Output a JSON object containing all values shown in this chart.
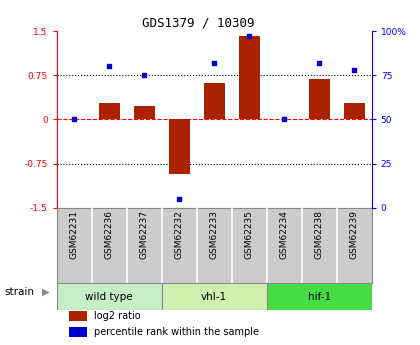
{
  "title": "GDS1379 / 10309",
  "samples": [
    "GSM62231",
    "GSM62236",
    "GSM62237",
    "GSM62232",
    "GSM62233",
    "GSM62235",
    "GSM62234",
    "GSM62238",
    "GSM62239"
  ],
  "log2_ratio": [
    0.0,
    0.28,
    0.22,
    -0.92,
    0.62,
    1.42,
    0.0,
    0.68,
    0.28
  ],
  "percentile": [
    50,
    80,
    75,
    5,
    82,
    97,
    50,
    82,
    78
  ],
  "groups": [
    {
      "label": "wild type",
      "start": 0,
      "end": 3,
      "color": "#c8eec8"
    },
    {
      "label": "vhl-1",
      "start": 3,
      "end": 6,
      "color": "#d0f0b0"
    },
    {
      "label": "hif-1",
      "start": 6,
      "end": 9,
      "color": "#44dd44"
    }
  ],
  "bar_color": "#aa2200",
  "dot_color": "#0000cc",
  "ylim_left": [
    -1.5,
    1.5
  ],
  "ylim_right": [
    0,
    100
  ],
  "yticks_left": [
    -1.5,
    -0.75,
    0.0,
    0.75,
    1.5
  ],
  "ytick_labels_left": [
    "-1.5",
    "-0.75",
    "0",
    "0.75",
    "1.5"
  ],
  "yticks_right": [
    0,
    25,
    50,
    75,
    100
  ],
  "ytick_labels_right": [
    "0",
    "25",
    "50",
    "75",
    "100%"
  ],
  "hline_dashed": 0.0,
  "hline_dotted": [
    -0.75,
    0.75
  ],
  "bg_color": "#ffffff",
  "sample_cell_color": "#cccccc",
  "legend_items": [
    {
      "label": "log2 ratio",
      "color": "#aa2200"
    },
    {
      "label": "percentile rank within the sample",
      "color": "#0000cc"
    }
  ],
  "strain_label": "strain"
}
